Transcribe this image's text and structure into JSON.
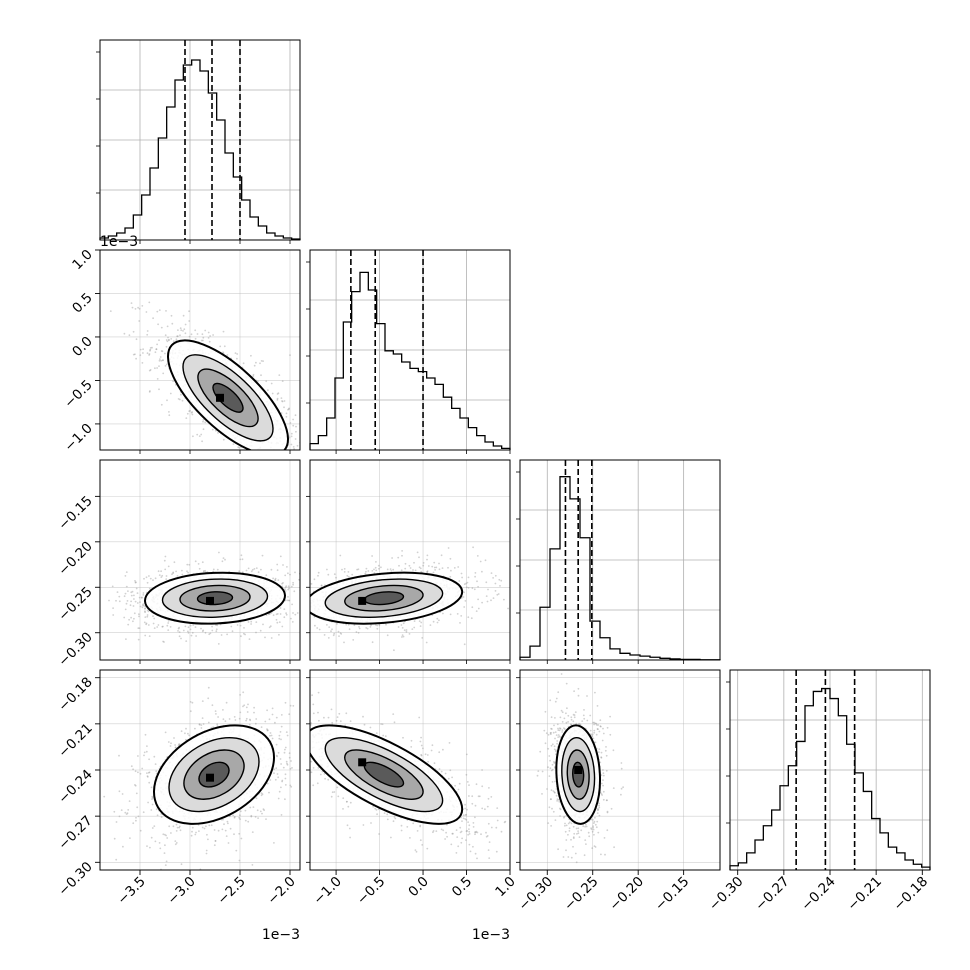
{
  "chart_data": {
    "type": "corner",
    "parameters": 4,
    "grid": true,
    "quantile_lines": "dashed",
    "colors": {
      "frame": "#000000",
      "grid": "#b0b0b0",
      "points": "#9a9a9a",
      "contour": "#000000"
    },
    "histograms": [
      {
        "param": 0,
        "range": [
          -3.9,
          -1.9
        ],
        "quantiles": [
          -3.05,
          -2.78,
          -2.5
        ],
        "counts": [
          0.2,
          0.4,
          0.7,
          1.2,
          2.5,
          4.5,
          7.2,
          10.2,
          13.3,
          16.0,
          17.5,
          18.0,
          16.9,
          14.7,
          12.0,
          8.7,
          6.3,
          4.0,
          2.3,
          1.4,
          0.7,
          0.4,
          0.2,
          0.1
        ],
        "ylim": [
          0,
          20
        ],
        "top_label": "1e−3"
      },
      {
        "param": 1,
        "range": [
          -1.3,
          1.0
        ],
        "quantiles": [
          -0.83,
          -0.55,
          0.0
        ],
        "counts": [
          0.8,
          1.8,
          4.0,
          9.0,
          16.0,
          19.8,
          22.2,
          20.0,
          15.8,
          12.4,
          12.0,
          11.0,
          10.2,
          9.8,
          9.0,
          8.2,
          6.6,
          5.2,
          4.0,
          2.8,
          1.8,
          1.0,
          0.5,
          0.2
        ],
        "ylim": [
          0,
          25
        ]
      },
      {
        "param": 2,
        "range": [
          -0.33,
          -0.11
        ],
        "quantiles": [
          -0.28,
          -0.266,
          -0.251
        ],
        "counts": [
          0.5,
          2.5,
          9.5,
          20.0,
          33.0,
          29.0,
          22.0,
          7.0,
          4.0,
          2.0,
          1.2,
          0.9,
          0.7,
          0.5,
          0.3,
          0.2,
          0.1,
          0.1,
          0.05,
          0.05
        ],
        "ylim": [
          0,
          36
        ]
      },
      {
        "param": 3,
        "range": [
          -0.305,
          -0.175
        ],
        "quantiles": [
          -0.262,
          -0.243,
          -0.224
        ],
        "counts": [
          0.3,
          0.5,
          1.2,
          2.1,
          3.1,
          4.2,
          5.9,
          7.3,
          9.0,
          11.5,
          12.5,
          12.7,
          12.0,
          10.8,
          8.8,
          6.8,
          5.5,
          3.6,
          2.6,
          1.6,
          1.2,
          0.7,
          0.4,
          0.2
        ],
        "ylim": [
          0,
          14
        ]
      }
    ],
    "pairs": [
      {
        "x": 0,
        "y": 1,
        "center": [
          -2.62,
          -0.7
        ],
        "sd": [
          0.3,
          0.33
        ],
        "rho": -0.72,
        "peak": [
          -2.7,
          -0.7
        ]
      },
      {
        "x": 0,
        "y": 2,
        "center": [
          -2.75,
          -0.262
        ],
        "sd": [
          0.35,
          0.014
        ],
        "rho": 0.1,
        "peak": [
          -2.8,
          -0.265
        ]
      },
      {
        "x": 1,
        "y": 2,
        "center": [
          -0.45,
          -0.262
        ],
        "sd": [
          0.45,
          0.014
        ],
        "rho": 0.25,
        "peak": [
          -0.7,
          -0.265
        ]
      },
      {
        "x": 0,
        "y": 3,
        "center": [
          -2.76,
          -0.243
        ],
        "sd": [
          0.3,
          0.016
        ],
        "rho": 0.35,
        "peak": [
          -2.8,
          -0.245
        ]
      },
      {
        "x": 1,
        "y": 3,
        "center": [
          -0.45,
          -0.243
        ],
        "sd": [
          0.45,
          0.016
        ],
        "rho": -0.7,
        "peak": [
          -0.7,
          -0.235
        ]
      },
      {
        "x": 2,
        "y": 3,
        "center": [
          -0.266,
          -0.243
        ],
        "sd": [
          0.012,
          0.016
        ],
        "rho": -0.1,
        "peak": [
          -0.266,
          -0.24
        ]
      }
    ],
    "axes": [
      {
        "param": 0,
        "range": [
          -3.9,
          -1.9
        ],
        "ticks": [
          -3.5,
          -3.0,
          -2.5,
          -2.0
        ],
        "tick_labels": [
          "−3.5",
          "−3.0",
          "−2.5",
          "−2.0"
        ],
        "offset_label": "1e−3"
      },
      {
        "param": 1,
        "range": [
          -1.3,
          1.0
        ],
        "ticks": [
          -1.0,
          -0.5,
          0.0,
          0.5,
          1.0
        ],
        "tick_labels": [
          "−1.0",
          "−0.5",
          "0.0",
          "0.5",
          "1.0"
        ],
        "offset_label": "1e−3"
      },
      {
        "param": 2,
        "range": [
          -0.33,
          -0.11
        ],
        "ticks": [
          -0.3,
          -0.25,
          -0.2,
          -0.15
        ],
        "tick_labels": [
          "−0.30",
          "−0.25",
          "−0.20",
          "−0.15"
        ]
      },
      {
        "param": 3,
        "range": [
          -0.305,
          -0.175
        ],
        "ticks": [
          -0.3,
          -0.27,
          -0.24,
          -0.21,
          -0.18
        ],
        "tick_labels": [
          "−0.30",
          "−0.27",
          "−0.24",
          "−0.21",
          "−0.18"
        ]
      }
    ]
  }
}
